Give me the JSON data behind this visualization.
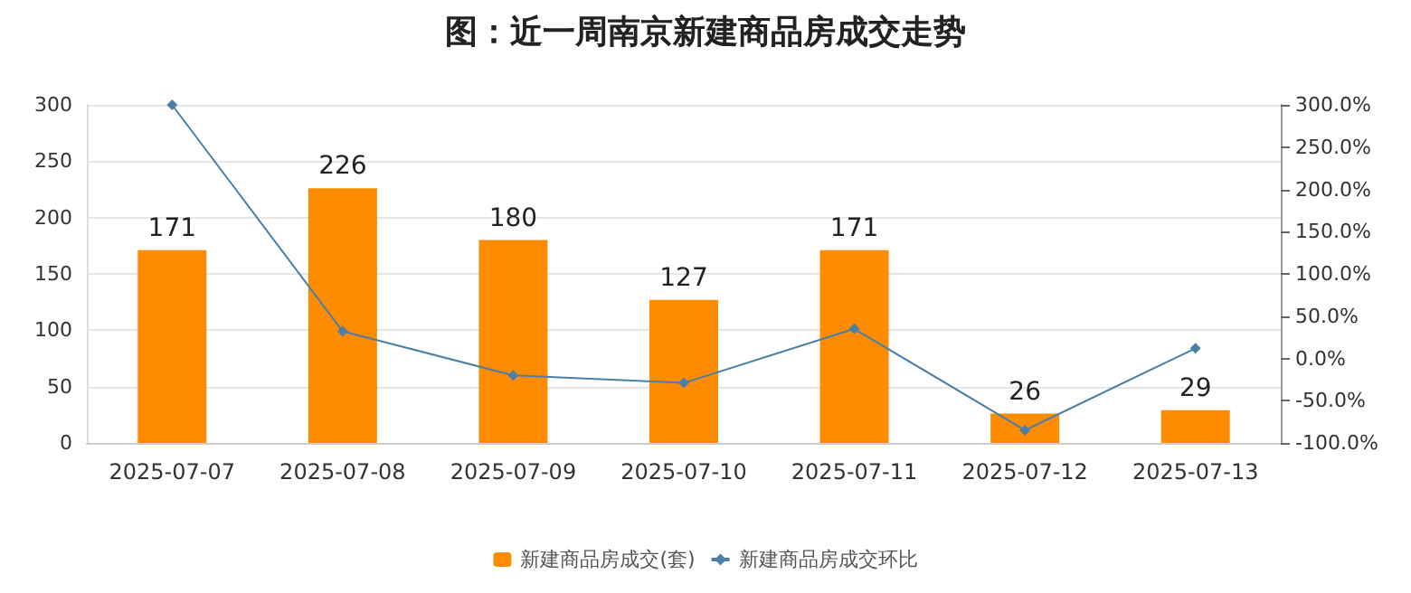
{
  "chart_data": {
    "type": "bar",
    "title": "图：近一周南京新建商品房成交走势",
    "categories": [
      "2025-07-07",
      "2025-07-08",
      "2025-07-09",
      "2025-07-10",
      "2025-07-11",
      "2025-07-12",
      "2025-07-13"
    ],
    "series": [
      {
        "name": "新建商品房成交(套)",
        "color": "#ff8c00",
        "values": [
          171,
          226,
          180,
          127,
          171,
          26,
          29
        ],
        "value_labels": [
          "171",
          "226",
          "180",
          "127",
          "171",
          "26",
          "29"
        ]
      },
      {
        "name": "新建商品房成交环比",
        "type": "line",
        "axis": "y2",
        "color": "#4a7fa8",
        "marker": "diamond",
        "values": [
          300,
          32,
          -20,
          -29,
          35,
          -85,
          12
        ]
      }
    ],
    "ylim": [
      0,
      300
    ],
    "yticks": [
      0,
      50,
      100,
      150,
      200,
      250,
      300
    ],
    "y2lim": [
      -100,
      300
    ],
    "y2ticks": [
      {
        "value": -100,
        "label": "-100.0%"
      },
      {
        "value": -50,
        "label": "-50.0%"
      },
      {
        "value": 0,
        "label": "0.0%"
      },
      {
        "value": 50,
        "label": "50.0%"
      },
      {
        "value": 100,
        "label": "100.0%"
      },
      {
        "value": 150,
        "label": "150.0%"
      },
      {
        "value": 200,
        "label": "200.0%"
      },
      {
        "value": 250,
        "label": "250.0%"
      },
      {
        "value": 300,
        "label": "300.0%"
      }
    ],
    "grid": "y",
    "legend": "bottom"
  }
}
